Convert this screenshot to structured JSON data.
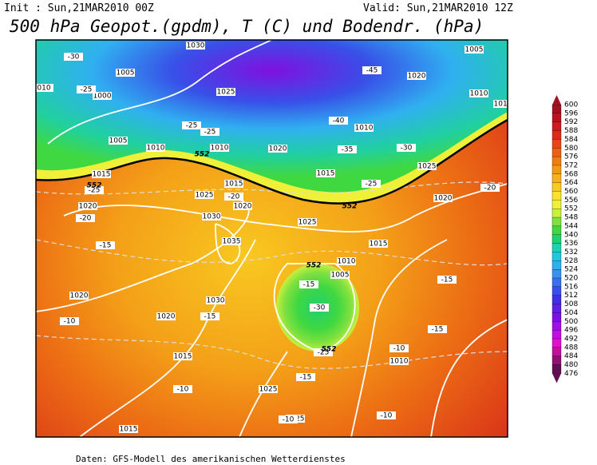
{
  "header": {
    "init": "Init : Sun,21MAR2010 00Z",
    "valid": "Valid: Sun,21MAR2010 12Z",
    "title": "500 hPa Geopot.(gpdm), T (C) und Bodendr. (hPa)"
  },
  "footer": "Daten: GFS-Modell des amerikanischen Wetterdienstes",
  "colorbar": {
    "labels": [
      "600",
      "596",
      "592",
      "588",
      "584",
      "580",
      "576",
      "572",
      "568",
      "564",
      "560",
      "556",
      "552",
      "548",
      "544",
      "540",
      "536",
      "532",
      "528",
      "524",
      "520",
      "516",
      "512",
      "508",
      "504",
      "500",
      "496",
      "492",
      "488",
      "484",
      "480",
      "476"
    ],
    "colors": [
      "#a0101e",
      "#b81420",
      "#cc1c1c",
      "#dc2c18",
      "#e44818",
      "#ec6014",
      "#f07c14",
      "#f49818",
      "#f8b01c",
      "#fcc824",
      "#fce030",
      "#f0f038",
      "#c8f040",
      "#80e040",
      "#40d840",
      "#20d070",
      "#20d0b0",
      "#20c8e0",
      "#30b0f0",
      "#3890f0",
      "#3870f0",
      "#3850e8",
      "#4030e0",
      "#6020e0",
      "#8010e0",
      "#a010e0",
      "#c010e0",
      "#e010d0",
      "#c010a0",
      "#901070",
      "#601050"
    ]
  },
  "map": {
    "isobars": [
      "1030",
      "1005",
      "1000",
      "1025",
      "1005",
      "1010",
      "1010",
      "1020",
      "1015",
      "1015",
      "1025",
      "1020",
      "1030",
      "1025",
      "1035",
      "1015",
      "1010",
      "1005",
      "1030",
      "1020",
      "1020",
      "1015",
      "1025",
      "1025",
      "1015",
      "1010",
      "1020",
      "1005",
      "1020",
      "1010",
      "1015",
      "1010",
      "1015",
      "1025",
      "1020",
      "010"
    ],
    "temperatures": [
      "-30",
      "-25",
      "-25",
      "-25",
      "-45",
      "-40",
      "-35",
      "-30",
      "-25",
      "-25",
      "-20",
      "-20",
      "-15",
      "-15",
      "-30",
      "-25",
      "-15",
      "-15",
      "-10",
      "-10",
      "-15",
      "-15",
      "-10",
      "-10",
      "-10",
      "-20"
    ],
    "heights": [
      "552",
      "552",
      "552",
      "552",
      "552"
    ]
  }
}
